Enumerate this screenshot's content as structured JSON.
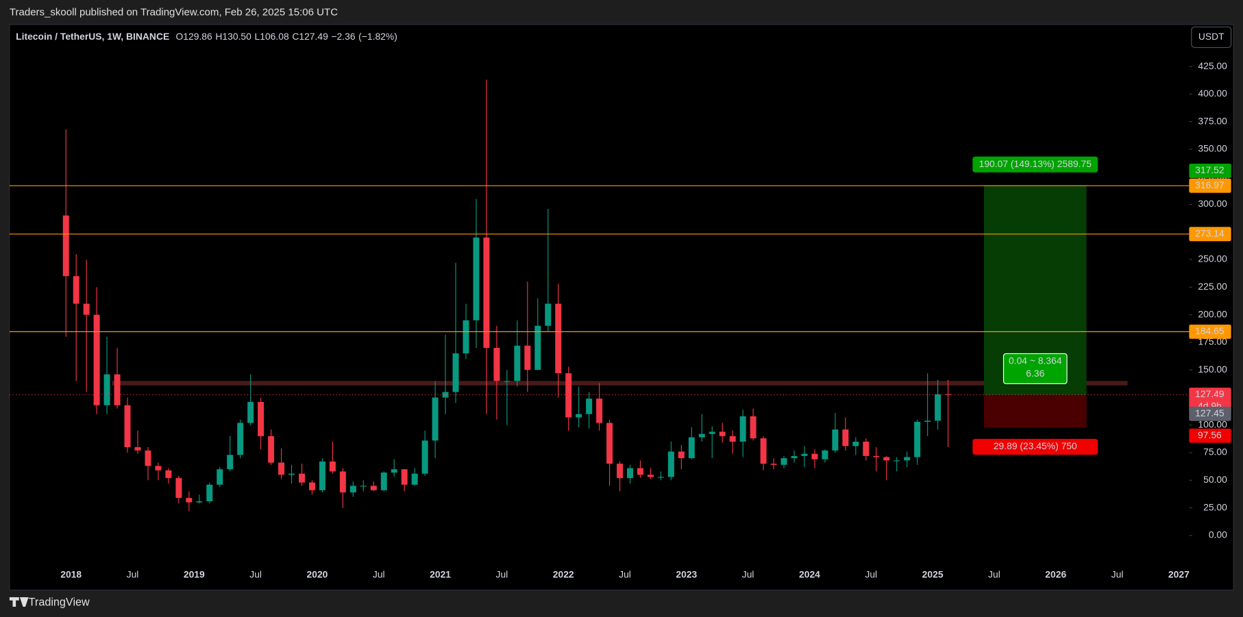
{
  "header": "Traders_skooll published on TradingView.com, Feb 26, 2025 15:06 UTC",
  "logo": "TradingView",
  "currency_button": "USDT",
  "chart_data": {
    "type": "candlestick",
    "legend": {
      "symbol": "Litecoin / TetherUS, 1W, BINANCE",
      "fields": [
        {
          "name": "O",
          "value": 129.86,
          "label": "129.86"
        },
        {
          "name": "H",
          "value": 130.5,
          "label": "130.50"
        },
        {
          "name": "L",
          "value": 106.08,
          "label": "106.08"
        },
        {
          "name": "C",
          "value": 127.49,
          "label": "127.49"
        }
      ],
      "change": {
        "value": -2.36,
        "label": "−2.36"
      },
      "change_pct": {
        "value": -1.82,
        "label": "(−1.82%)"
      }
    },
    "up_color": "#089981",
    "down_color": "#f23645",
    "candles": {
      "x": [
        "2017-12",
        "2018-01",
        "2018-02",
        "2018-03",
        "2018-04",
        "2018-05",
        "2018-06",
        "2018-07",
        "2018-08",
        "2018-09",
        "2018-10",
        "2018-11",
        "2018-12",
        "2019-01",
        "2019-02",
        "2019-03",
        "2019-04",
        "2019-05",
        "2019-06",
        "2019-07",
        "2019-08",
        "2019-09",
        "2019-10",
        "2019-11",
        "2019-12",
        "2020-01",
        "2020-02",
        "2020-03",
        "2020-04",
        "2020-05",
        "2020-06",
        "2020-07",
        "2020-08",
        "2020-09",
        "2020-10",
        "2020-11",
        "2020-12",
        "2021-01",
        "2021-02",
        "2021-03",
        "2021-04",
        "2021-05",
        "2021-06",
        "2021-07",
        "2021-08",
        "2021-09",
        "2021-10",
        "2021-11",
        "2021-12",
        "2022-01",
        "2022-02",
        "2022-03",
        "2022-04",
        "2022-05",
        "2022-06",
        "2022-07",
        "2022-08",
        "2022-09",
        "2022-10",
        "2022-11",
        "2022-12",
        "2023-01",
        "2023-02",
        "2023-03",
        "2023-04",
        "2023-05",
        "2023-06",
        "2023-07",
        "2023-08",
        "2023-09",
        "2023-10",
        "2023-11",
        "2023-12",
        "2024-01",
        "2024-02",
        "2024-03",
        "2024-04",
        "2024-05",
        "2024-06",
        "2024-07",
        "2024-08",
        "2024-09",
        "2024-10",
        "2024-11",
        "2024-12",
        "2025-01",
        "2025-02"
      ],
      "open": [
        290,
        235,
        210,
        200,
        118,
        146,
        118,
        80,
        77,
        63,
        59,
        52,
        34,
        30,
        31,
        46,
        60,
        73,
        102,
        121,
        90,
        66,
        55,
        56,
        48,
        41,
        67,
        58,
        39,
        45,
        45,
        41,
        57,
        60,
        46,
        56,
        86,
        125,
        130,
        165,
        195,
        270,
        170,
        140,
        140,
        172,
        150,
        190,
        210,
        147,
        107,
        110,
        124,
        102,
        65,
        52,
        61,
        55,
        53,
        53,
        76,
        70,
        89,
        92,
        94,
        90,
        85,
        108,
        88,
        65,
        64,
        70,
        72,
        74,
        69,
        77,
        96,
        81,
        85,
        72,
        71,
        68,
        68,
        71,
        103,
        104,
        128
      ],
      "high": [
        368,
        255,
        250,
        225,
        180,
        170,
        125,
        95,
        80,
        66,
        61,
        54,
        40,
        37,
        48,
        62,
        90,
        105,
        146,
        125,
        96,
        79,
        64,
        65,
        50,
        70,
        85,
        61,
        49,
        50,
        49,
        58,
        69,
        60,
        61,
        95,
        140,
        182,
        247,
        210,
        305,
        413,
        190,
        150,
        195,
        230,
        215,
        296,
        228,
        153,
        135,
        130,
        138,
        105,
        67,
        64,
        68,
        61,
        58,
        85,
        82,
        98,
        110,
        99,
        102,
        95,
        114,
        115,
        90,
        70,
        72,
        77,
        81,
        78,
        78,
        111,
        107,
        89,
        88,
        80,
        72,
        71,
        76,
        105,
        147,
        141,
        141
      ],
      "low": [
        180,
        140,
        130,
        110,
        110,
        115,
        75,
        74,
        50,
        50,
        47,
        29,
        22,
        29,
        29,
        44,
        58,
        70,
        100,
        78,
        64,
        51,
        47,
        45,
        37,
        39,
        56,
        25,
        35,
        40,
        40,
        40,
        53,
        40,
        45,
        54,
        70,
        110,
        120,
        160,
        170,
        110,
        105,
        100,
        135,
        130,
        150,
        185,
        125,
        95,
        98,
        97,
        95,
        45,
        40,
        47,
        52,
        51,
        50,
        50,
        60,
        69,
        85,
        70,
        84,
        74,
        71,
        86,
        59,
        60,
        61,
        66,
        62,
        61,
        66,
        75,
        77,
        73,
        68,
        58,
        50,
        58,
        62,
        64,
        90,
        96,
        80
      ],
      "close": [
        235,
        210,
        200,
        118,
        146,
        118,
        80,
        77,
        63,
        59,
        52,
        34,
        30,
        31,
        46,
        60,
        73,
        102,
        121,
        90,
        66,
        55,
        56,
        48,
        41,
        67,
        58,
        39,
        45,
        45,
        41,
        57,
        60,
        46,
        56,
        86,
        125,
        130,
        165,
        195,
        270,
        170,
        140,
        140,
        172,
        150,
        190,
        210,
        147,
        107,
        110,
        124,
        102,
        65,
        52,
        61,
        55,
        53,
        53,
        76,
        70,
        89,
        92,
        94,
        90,
        85,
        108,
        88,
        65,
        64,
        70,
        72,
        74,
        69,
        77,
        96,
        81,
        85,
        72,
        71,
        68,
        68,
        71,
        103,
        104,
        128,
        127.49
      ]
    },
    "xlim": [
      "2017-07",
      "2027-02"
    ],
    "xticks": [
      {
        "value": "2018-01",
        "label": "2018"
      },
      {
        "value": "2018-07",
        "label": "Jul"
      },
      {
        "value": "2019-01",
        "label": "2019"
      },
      {
        "value": "2019-07",
        "label": "Jul"
      },
      {
        "value": "2020-01",
        "label": "2020"
      },
      {
        "value": "2020-07",
        "label": "Jul"
      },
      {
        "value": "2021-01",
        "label": "2021"
      },
      {
        "value": "2021-07",
        "label": "Jul"
      },
      {
        "value": "2022-01",
        "label": "2022"
      },
      {
        "value": "2022-07",
        "label": "Jul"
      },
      {
        "value": "2023-01",
        "label": "2023"
      },
      {
        "value": "2023-07",
        "label": "Jul"
      },
      {
        "value": "2024-01",
        "label": "2024"
      },
      {
        "value": "2024-07",
        "label": "Jul"
      },
      {
        "value": "2025-01",
        "label": "2025"
      },
      {
        "value": "2025-07",
        "label": "Jul"
      },
      {
        "value": "2026-01",
        "label": "2026"
      },
      {
        "value": "2026-07",
        "label": "Jul"
      },
      {
        "value": "2027-01",
        "label": "2027"
      }
    ],
    "ylim": [
      -49.5,
      463
    ],
    "yticks": [
      {
        "value": 0,
        "label": "0.00"
      },
      {
        "value": 25,
        "label": "25.00"
      },
      {
        "value": 50,
        "label": "50.00"
      },
      {
        "value": 75,
        "label": "75.00"
      },
      {
        "value": 100,
        "label": "100.00"
      },
      {
        "value": 125,
        "label": "125.00"
      },
      {
        "value": 150,
        "label": "150.00"
      },
      {
        "value": 175,
        "label": "175.00"
      },
      {
        "value": 200,
        "label": "200.00"
      },
      {
        "value": 225,
        "label": "225.00"
      },
      {
        "value": 250,
        "label": "250.00"
      },
      {
        "value": 275,
        "label": "275.00"
      },
      {
        "value": 300,
        "label": "300.00"
      },
      {
        "value": 325,
        "label": "325.00"
      },
      {
        "value": 350,
        "label": "350.00"
      },
      {
        "value": 375,
        "label": "375.00"
      },
      {
        "value": 400,
        "label": "400.00"
      },
      {
        "value": 425,
        "label": "425.00"
      }
    ],
    "horizontal_lines": {
      "color": "#ff9800",
      "values": [
        316.97,
        273.14,
        184.65
      ]
    },
    "zone": {
      "start": "2018-05",
      "end": "2026-08",
      "low": 136,
      "high": 140,
      "color": "#5a2222"
    },
    "last_price": {
      "value": 127.49,
      "label": "127.49",
      "countdown": "4d 9h",
      "color": "#f23645"
    },
    "position": {
      "start": "2025-06",
      "end": "2026-04",
      "entry": 127.45,
      "target": 317.52,
      "stop": 97.56,
      "target_label": "190.07 (149.13%) 2589.75",
      "ratio_label": "0.04 ~ 8.364",
      "ratio": 6.36,
      "stop_label": "29.89 (23.45%) 750",
      "target_color": "#00a400",
      "stop_color": "#f00000",
      "entry_color": "#5d606b"
    }
  }
}
